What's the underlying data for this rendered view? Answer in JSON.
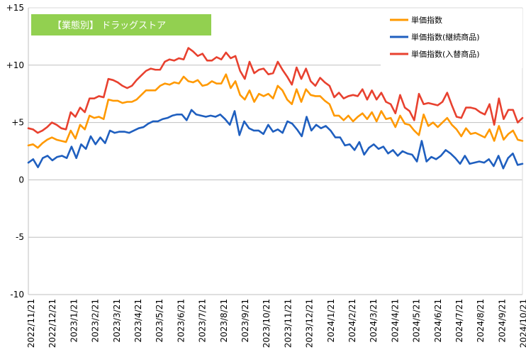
{
  "chart_data": {
    "type": "line",
    "title": "【業態別】 ドラッグストア",
    "title_bg": "#92d050",
    "ylim": [
      -10,
      15
    ],
    "yticks": [
      15,
      10,
      5,
      0,
      -5,
      -10
    ],
    "ytick_labels": [
      "+15",
      "+10",
      "+5",
      "0",
      "-5",
      "-10"
    ],
    "grid": true,
    "legend_position": "top-right",
    "xtick_labels": [
      "2022/11/21",
      "2022/12/21",
      "2023/1/21",
      "2023/2/21",
      "2023/3/21",
      "2023/4/21",
      "2023/5/21",
      "2023/6/21",
      "2023/7/21",
      "2023/8/21",
      "2023/9/21",
      "2023/10/21",
      "2023/11/21",
      "2023/12/21",
      "2024/1/21",
      "2024/2/21",
      "2024/3/21",
      "2024/4/21",
      "2024/5/21",
      "2024/6/21",
      "2024/7/21",
      "2024/8/21",
      "2024/9/21",
      "2024/10/21"
    ],
    "series": [
      {
        "name": "単価指数",
        "color": "#ff9900",
        "values": [
          3.0,
          3.1,
          2.8,
          3.2,
          3.5,
          3.7,
          3.5,
          3.4,
          3.3,
          4.3,
          3.6,
          4.8,
          4.4,
          5.6,
          5.4,
          5.5,
          5.3,
          7.0,
          6.9,
          6.9,
          6.7,
          6.8,
          6.8,
          7.0,
          7.4,
          7.8,
          7.8,
          7.8,
          8.2,
          8.4,
          8.3,
          8.5,
          8.4,
          9.0,
          8.6,
          8.5,
          8.7,
          8.2,
          8.3,
          8.6,
          8.4,
          8.4,
          9.2,
          8.0,
          8.6,
          7.4,
          7.0,
          7.8,
          6.8,
          7.5,
          7.3,
          7.5,
          7.1,
          8.2,
          7.8,
          7.0,
          6.6,
          7.9,
          6.8,
          7.9,
          7.4,
          7.3,
          7.3,
          6.9,
          6.6,
          5.6,
          5.6,
          5.2,
          5.6,
          5.1,
          5.5,
          5.8,
          5.3,
          5.9,
          5.1,
          6.0,
          5.3,
          5.4,
          4.6,
          5.6,
          4.9,
          4.8,
          4.3,
          3.9,
          5.7,
          4.7,
          5.0,
          4.6,
          5.0,
          5.4,
          4.8,
          4.4,
          3.8,
          4.5,
          4.0,
          4.1,
          3.9,
          3.7,
          4.4,
          3.4,
          4.7,
          3.5,
          4.0,
          4.3,
          3.5,
          3.4
        ]
      },
      {
        "name": "単価指数(継続商品)",
        "color": "#1f5fbf",
        "values": [
          1.5,
          1.8,
          1.1,
          1.9,
          2.1,
          1.7,
          2.0,
          2.1,
          1.9,
          2.9,
          1.9,
          3.1,
          2.7,
          3.8,
          3.1,
          3.7,
          3.2,
          4.3,
          4.1,
          4.2,
          4.2,
          4.1,
          4.3,
          4.5,
          4.6,
          4.9,
          5.1,
          5.1,
          5.3,
          5.4,
          5.6,
          5.7,
          5.7,
          5.2,
          6.1,
          5.7,
          5.6,
          5.5,
          5.6,
          5.5,
          5.7,
          5.3,
          4.8,
          6.0,
          3.9,
          5.1,
          4.5,
          4.3,
          4.3,
          4.0,
          4.8,
          4.2,
          4.4,
          4.1,
          5.1,
          4.9,
          4.4,
          3.8,
          5.5,
          4.3,
          4.8,
          4.5,
          4.7,
          4.3,
          3.7,
          3.7,
          3.0,
          3.1,
          2.6,
          3.3,
          2.2,
          2.8,
          3.1,
          2.7,
          2.9,
          2.3,
          2.6,
          2.1,
          2.5,
          2.3,
          2.2,
          1.6,
          3.4,
          1.6,
          2.0,
          1.8,
          2.1,
          2.6,
          2.3,
          1.9,
          1.4,
          2.1,
          1.4,
          1.5,
          1.6,
          1.5,
          1.8,
          1.2,
          2.1,
          1.0,
          1.9,
          2.3,
          1.3,
          1.4
        ]
      },
      {
        "name": "単価指数(入替商品)",
        "color": "#e8412f",
        "values": [
          4.5,
          4.4,
          4.1,
          4.3,
          4.6,
          5.0,
          4.8,
          4.5,
          4.4,
          5.9,
          5.5,
          6.3,
          5.9,
          7.1,
          7.1,
          7.3,
          7.2,
          8.8,
          8.7,
          8.5,
          8.2,
          8.0,
          8.2,
          8.7,
          9.1,
          9.5,
          9.7,
          9.6,
          9.6,
          10.3,
          10.5,
          10.4,
          10.6,
          10.5,
          11.5,
          11.2,
          10.8,
          11.0,
          10.4,
          10.4,
          10.7,
          10.5,
          11.1,
          10.6,
          10.8,
          9.5,
          8.8,
          10.3,
          9.3,
          9.6,
          9.7,
          9.2,
          9.3,
          10.3,
          9.6,
          9.0,
          8.3,
          9.8,
          8.8,
          9.7,
          8.6,
          8.2,
          8.9,
          8.5,
          8.2,
          7.2,
          7.6,
          7.1,
          7.3,
          7.4,
          7.3,
          7.9,
          7.0,
          7.8,
          7.0,
          7.6,
          6.8,
          6.6,
          5.8,
          7.4,
          6.3,
          6.0,
          5.2,
          7.5,
          6.6,
          6.7,
          6.6,
          6.5,
          6.8,
          7.6,
          6.5,
          5.5,
          5.4,
          6.3,
          6.3,
          6.2,
          5.9,
          5.7,
          6.6,
          4.8,
          7.1,
          5.3,
          6.1,
          6.1,
          5.0,
          5.4
        ]
      }
    ]
  }
}
